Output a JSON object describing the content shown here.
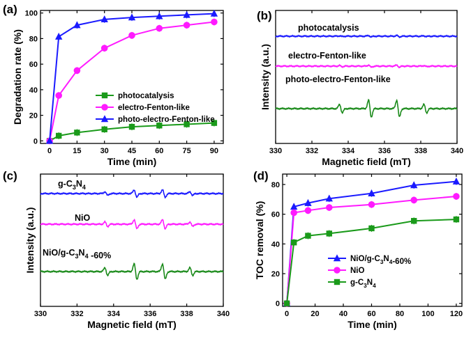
{
  "chart_data": [
    {
      "panel": "(a)",
      "type": "line",
      "xlabel": "Time (min)",
      "ylabel": "Degradation rate (%)",
      "xlim": [
        -5,
        95
      ],
      "ylim": [
        -2,
        102
      ],
      "xticks": [
        0,
        15,
        30,
        45,
        60,
        75,
        90
      ],
      "yticks": [
        0,
        20,
        40,
        60,
        80,
        100
      ],
      "legend": "bottom-right",
      "x": [
        0,
        5,
        15,
        30,
        45,
        60,
        75,
        90
      ],
      "series": [
        {
          "name": "photocatalysis",
          "color": "#1a9a1a",
          "marker": "square",
          "values": [
            0,
            4,
            6.5,
            9,
            11,
            12,
            13,
            14
          ]
        },
        {
          "name": "electro-Fenton-like",
          "color": "#ff1aff",
          "marker": "circle",
          "values": [
            0,
            35.5,
            55,
            72.5,
            82.5,
            88,
            90.5,
            93
          ]
        },
        {
          "name": "photo-electro-Fenton-like",
          "color": "#1a1aff",
          "marker": "triangle",
          "values": [
            0,
            81.5,
            90.5,
            95,
            96.5,
            97.5,
            98.5,
            99.5
          ]
        }
      ]
    },
    {
      "panel": "(b)",
      "type": "line",
      "xlabel": "Magnetic field (mT)",
      "ylabel": "Intensity (a.u.)",
      "xlim": [
        330,
        340
      ],
      "xticks": [
        330,
        332,
        334,
        336,
        338,
        340
      ],
      "series": [
        {
          "name": "photocatalysis",
          "color": "#1a1aff",
          "amplitude": 0.08
        },
        {
          "name": "electro-Fenton-like",
          "color": "#ff1aff",
          "amplitude": 0.13
        },
        {
          "name": "photo-electro-Fenton-like",
          "color": "#1a8a1a",
          "amplitude": 1.0
        }
      ]
    },
    {
      "panel": "(c)",
      "type": "line",
      "xlabel": "Magnetic field (mT)",
      "ylabel": "Intensity (a.u.)",
      "xlim": [
        330,
        340
      ],
      "xticks": [
        330,
        332,
        334,
        336,
        338,
        340
      ],
      "series": [
        {
          "name": "g-C3N4",
          "color": "#1a1aff",
          "amplitude": 0.4
        },
        {
          "name": "NiO",
          "color": "#ff1aff",
          "amplitude": 0.5
        },
        {
          "name": "NiO/g-C3N4 -60%",
          "color": "#1a8a1a",
          "amplitude": 0.85
        }
      ]
    },
    {
      "panel": "(d)",
      "type": "line",
      "xlabel": "Time (min)",
      "ylabel": "TOC removal (%)",
      "xlim": [
        -3,
        124
      ],
      "ylim": [
        -2,
        87
      ],
      "xticks": [
        0,
        20,
        40,
        60,
        80,
        100,
        120
      ],
      "yticks": [
        0,
        20,
        40,
        60,
        80
      ],
      "legend": "bottom-right",
      "x": [
        0,
        5,
        15,
        30,
        60,
        90,
        120
      ],
      "series": [
        {
          "name": "NiO/g-C3N4-60%",
          "color": "#1a1aff",
          "marker": "triangle",
          "values": [
            0,
            65,
            67.5,
            70.5,
            74,
            79.5,
            82
          ]
        },
        {
          "name": "NiO",
          "color": "#ff1aff",
          "marker": "circle",
          "values": [
            0,
            61,
            62.5,
            64.5,
            66.5,
            69.5,
            72
          ]
        },
        {
          "name": "g-C3N4",
          "color": "#1a9a1a",
          "marker": "square",
          "values": [
            0,
            41,
            45.5,
            47,
            50.5,
            55.5,
            56.5
          ]
        }
      ]
    }
  ]
}
